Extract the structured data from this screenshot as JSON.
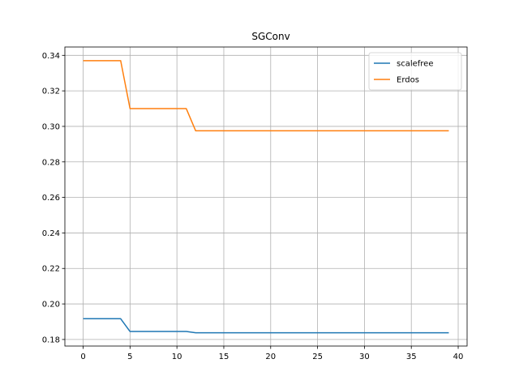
{
  "chart_data": {
    "type": "line",
    "title": "SGConv",
    "xlabel": "",
    "ylabel": "",
    "xlim": [
      -1.95,
      40.95
    ],
    "ylim": [
      0.1763,
      0.3447
    ],
    "xticks": [
      0,
      5,
      10,
      15,
      20,
      25,
      30,
      35,
      40
    ],
    "yticks": [
      0.18,
      0.2,
      0.22,
      0.24,
      0.26,
      0.28,
      0.3,
      0.32,
      0.34
    ],
    "grid": true,
    "legend_position": "top-right",
    "x": [
      0,
      1,
      2,
      3,
      4,
      5,
      6,
      7,
      8,
      9,
      10,
      11,
      12,
      13,
      14,
      15,
      16,
      17,
      18,
      19,
      20,
      21,
      22,
      23,
      24,
      25,
      26,
      27,
      28,
      29,
      30,
      31,
      32,
      33,
      34,
      35,
      36,
      37,
      38,
      39
    ],
    "series": [
      {
        "name": "scalefree",
        "color": "#1f77b4",
        "values": [
          0.1917,
          0.1917,
          0.1917,
          0.1917,
          0.1917,
          0.1845,
          0.1845,
          0.1845,
          0.1845,
          0.1845,
          0.1845,
          0.1845,
          0.1838,
          0.1838,
          0.1838,
          0.1838,
          0.1838,
          0.1838,
          0.1838,
          0.1838,
          0.1838,
          0.1838,
          0.1838,
          0.1838,
          0.1838,
          0.1838,
          0.1838,
          0.1838,
          0.1838,
          0.1838,
          0.1838,
          0.1838,
          0.1838,
          0.1838,
          0.1838,
          0.1838,
          0.1838,
          0.1838,
          0.1838,
          0.1838
        ]
      },
      {
        "name": "Erdos",
        "color": "#ff7f0e",
        "values": [
          0.337,
          0.337,
          0.337,
          0.337,
          0.337,
          0.31,
          0.31,
          0.31,
          0.31,
          0.31,
          0.31,
          0.31,
          0.2975,
          0.2975,
          0.2975,
          0.2975,
          0.2975,
          0.2975,
          0.2975,
          0.2975,
          0.2975,
          0.2975,
          0.2975,
          0.2975,
          0.2975,
          0.2975,
          0.2975,
          0.2975,
          0.2975,
          0.2975,
          0.2975,
          0.2975,
          0.2975,
          0.2975,
          0.2975,
          0.2975,
          0.2975,
          0.2975,
          0.2975,
          0.2975
        ]
      }
    ]
  }
}
